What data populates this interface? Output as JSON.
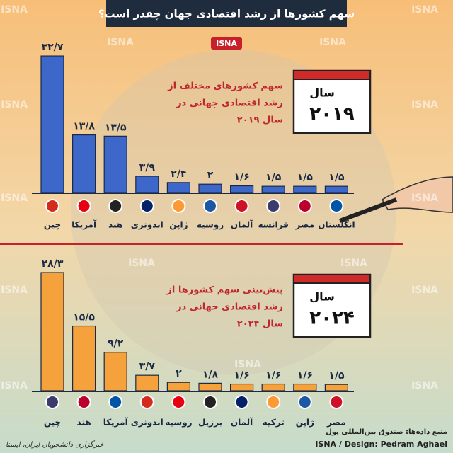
{
  "header": {
    "title": "سهم کشورها از رشد اقتصادی جهان چقدر است؟",
    "badge": "ISNA",
    "watermark": "ISNA"
  },
  "chart_data": [
    {
      "type": "bar",
      "color": "#3d68c9",
      "annotation": [
        "سهم کشورهای مختلف از",
        "رشد اقتصادی جهانی در",
        "سال ۲۰۱۹"
      ],
      "calendar_label": "سال",
      "calendar_year": "۲۰۱۹",
      "categories": [
        "چین",
        "آمریکا",
        "هند",
        "اندونزی",
        "ژاپن",
        "روسیه",
        "آلمان",
        "فرانسه",
        "مصر",
        "انگلستان"
      ],
      "values": [
        32.7,
        13.8,
        13.5,
        3.9,
        2.4,
        2,
        1.6,
        1.5,
        1.5,
        1.5
      ],
      "value_labels": [
        "۳۲/۷",
        "۱۳/۸",
        "۱۳/۵",
        "۳/۹",
        "۲/۴",
        "۲",
        "۱/۶",
        "۱/۵",
        "۱/۵",
        "۱/۵"
      ]
    },
    {
      "type": "bar",
      "color": "#f5a13c",
      "annotation": [
        "پیش‌بینی سهم کشورها از",
        "رشد اقتصادی جهانی در",
        "سال ۲۰۲۴"
      ],
      "calendar_label": "سال",
      "calendar_year": "۲۰۲۴",
      "categories": [
        "چین",
        "هند",
        "آمریکا",
        "اندونزی",
        "روسیه",
        "برزیل",
        "آلمان",
        "ترکیه",
        "ژاپن",
        "مصر"
      ],
      "values": [
        28.3,
        15.5,
        9.2,
        3.7,
        2,
        1.8,
        1.6,
        1.6,
        1.6,
        1.5
      ],
      "value_labels": [
        "۲۸/۳",
        "۱۵/۵",
        "۹/۲",
        "۳/۷",
        "۲",
        "۱/۸",
        "۱/۶",
        "۱/۶",
        "۱/۶",
        "۱/۵"
      ]
    }
  ],
  "footer": {
    "source": "منبع داده‌ها: صندوق بین‌المللی پول",
    "credit": "ISNA / Design: Pedram Aghaei",
    "agency": "خبرگزاری دانشجویان ایران، ایسنا"
  }
}
